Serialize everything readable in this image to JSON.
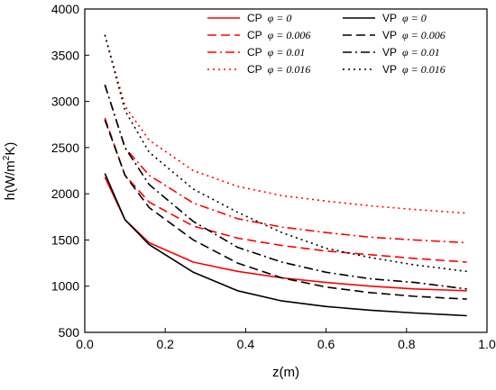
{
  "chart_data": {
    "type": "line",
    "title": "",
    "xlabel": "z(m)",
    "ylabel_base": "h(W/m",
    "ylabel_sup": "2",
    "ylabel_tail": "K)",
    "xlim": [
      0.0,
      1.0
    ],
    "ylim": [
      500,
      4000
    ],
    "xticks": [
      "0.0",
      "0.2",
      "0.4",
      "0.6",
      "0.8",
      "1.0"
    ],
    "yticks": [
      "500",
      "1000",
      "1500",
      "2000",
      "2500",
      "3000",
      "3500",
      "4000"
    ],
    "legend_position": "top-right",
    "colors": {
      "CP": "#ff0000",
      "VP": "#000000"
    },
    "series": [
      {
        "name": "CP φ = 0",
        "group": "CP",
        "phi_label": "φ = 0",
        "dash": "solid",
        "x": [
          0.05,
          0.1,
          0.16,
          0.27,
          0.38,
          0.49,
          0.6,
          0.71,
          0.82,
          0.95
        ],
        "y": [
          2180,
          1720,
          1470,
          1260,
          1160,
          1090,
          1040,
          1000,
          970,
          950
        ]
      },
      {
        "name": "CP φ = 0.006",
        "group": "CP",
        "phi_label": "φ = 0.006",
        "dash": "dash",
        "x": [
          0.05,
          0.1,
          0.16,
          0.27,
          0.38,
          0.49,
          0.6,
          0.71,
          0.82,
          0.95
        ],
        "y": [
          2820,
          2200,
          1910,
          1650,
          1520,
          1440,
          1380,
          1340,
          1300,
          1260
        ]
      },
      {
        "name": "CP φ = 0.01",
        "group": "CP",
        "phi_label": "φ = 0.01",
        "dash": "dashdot",
        "x": [
          0.05,
          0.1,
          0.16,
          0.27,
          0.38,
          0.49,
          0.6,
          0.71,
          0.82,
          0.95
        ],
        "y": [
          3180,
          2500,
          2200,
          1900,
          1730,
          1640,
          1580,
          1530,
          1500,
          1470
        ]
      },
      {
        "name": "CP φ = 0.016",
        "group": "CP",
        "phi_label": "φ = 0.016",
        "dash": "dot",
        "x": [
          0.05,
          0.1,
          0.16,
          0.27,
          0.38,
          0.49,
          0.6,
          0.71,
          0.82,
          0.95
        ],
        "y": [
          3720,
          2950,
          2580,
          2250,
          2080,
          1980,
          1920,
          1870,
          1830,
          1790
        ]
      },
      {
        "name": "VP φ = 0",
        "group": "VP",
        "phi_label": "φ = 0",
        "dash": "solid",
        "x": [
          0.05,
          0.1,
          0.16,
          0.27,
          0.38,
          0.49,
          0.6,
          0.71,
          0.82,
          0.95
        ],
        "y": [
          2220,
          1720,
          1450,
          1150,
          950,
          840,
          780,
          740,
          710,
          680
        ]
      },
      {
        "name": "VP φ = 0.006",
        "group": "VP",
        "phi_label": "φ = 0.006",
        "dash": "dash",
        "x": [
          0.05,
          0.1,
          0.16,
          0.27,
          0.38,
          0.49,
          0.6,
          0.71,
          0.82,
          0.95
        ],
        "y": [
          2800,
          2200,
          1850,
          1500,
          1250,
          1090,
          990,
          930,
          890,
          860
        ]
      },
      {
        "name": "VP φ = 0.01",
        "group": "VP",
        "phi_label": "φ = 0.01",
        "dash": "dashdot",
        "x": [
          0.05,
          0.1,
          0.16,
          0.27,
          0.38,
          0.49,
          0.6,
          0.71,
          0.82,
          0.95
        ],
        "y": [
          3180,
          2500,
          2100,
          1700,
          1420,
          1260,
          1150,
          1080,
          1040,
          970
        ]
      },
      {
        "name": "VP φ = 0.016",
        "group": "VP",
        "phi_label": "φ = 0.016",
        "dash": "dot",
        "x": [
          0.05,
          0.1,
          0.16,
          0.27,
          0.38,
          0.49,
          0.6,
          0.71,
          0.82,
          0.95
        ],
        "y": [
          3720,
          2900,
          2450,
          2050,
          1800,
          1580,
          1410,
          1310,
          1230,
          1160
        ]
      }
    ]
  }
}
